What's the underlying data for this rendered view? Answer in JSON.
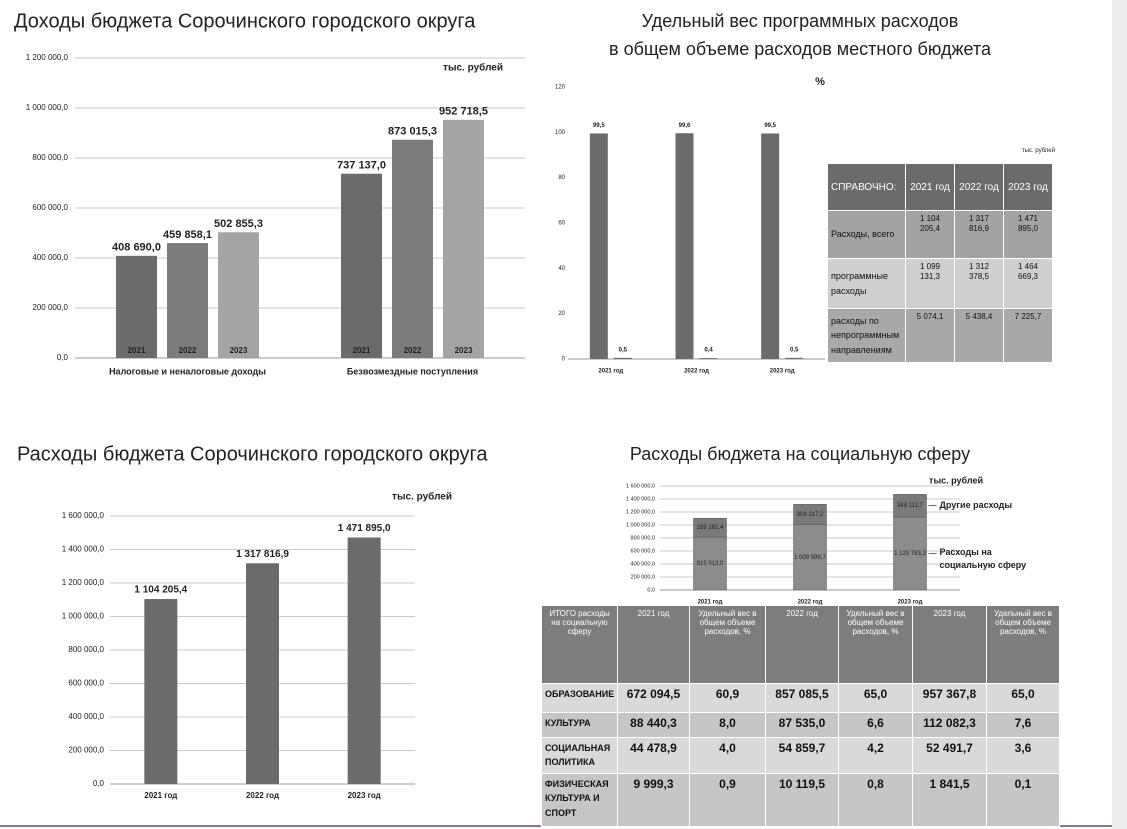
{
  "chart_data": [
    {
      "type": "bar",
      "title": "Доходы бюджета Сорочинского городского округа",
      "unit": "тыс. рублей",
      "categories": [
        "Налоговые и неналоговые доходы",
        "Безвозмездные поступления"
      ],
      "series": [
        {
          "name": "2021",
          "color": "#6b6b6b",
          "values": [
            408690.0,
            737137.0
          ],
          "value_labels": [
            "408 690,0",
            "737 137,0"
          ]
        },
        {
          "name": "2022",
          "color": "#7c7c7c",
          "values": [
            459858.1,
            873015.3
          ],
          "value_labels": [
            "459 858,1",
            "873 015,3"
          ]
        },
        {
          "name": "2023",
          "color": "#a4a4a4",
          "values": [
            502855.3,
            952718.5
          ],
          "value_labels": [
            "502 855,3",
            "952 718,5"
          ]
        }
      ],
      "ylim": [
        0,
        1200000
      ],
      "yticks": [
        {
          "value": 0,
          "label": "0,0"
        },
        {
          "value": 200000,
          "label": "200 000,0"
        },
        {
          "value": 400000,
          "label": "400 000,0"
        },
        {
          "value": 600000,
          "label": "600 000,0"
        },
        {
          "value": 800000,
          "label": "800 000,0"
        },
        {
          "value": 1000000,
          "label": "1 000 000,0"
        },
        {
          "value": 1200000,
          "label": "1 200 000,0"
        }
      ],
      "grid": true
    },
    {
      "type": "bar",
      "title": "Удельный вес программных расходов",
      "subtitle": "в общем объеме расходов местного бюджета",
      "unit": "%",
      "categories": [
        "2021 год",
        "2022 год",
        "2023 год"
      ],
      "series": [
        {
          "color": "#6b6b6b",
          "values": [
            99.5,
            99.6,
            99.5
          ],
          "value_labels": [
            "99,5",
            "99,6",
            "99,5"
          ]
        },
        {
          "color": "#6b6b6b",
          "values": [
            0.5,
            0.4,
            0.5
          ],
          "value_labels": [
            "0,5",
            "0,4",
            "0,5"
          ]
        }
      ],
      "ylim": [
        0,
        120
      ],
      "yticks": [
        0,
        20,
        40,
        60,
        80,
        100,
        120
      ],
      "grid": false
    },
    {
      "type": "bar",
      "title": "Расходы бюджета Сорочинского городского округа",
      "unit": "тыс. рублей",
      "categories": [
        "2021 год",
        "2022 год",
        "2023 год"
      ],
      "values": [
        1104205.4,
        1317816.9,
        1471895.0
      ],
      "value_labels": [
        "1 104 205,4",
        "1 317 816,9",
        "1 471 895,0"
      ],
      "color": "#6b6b6b",
      "ylim": [
        0,
        1600000
      ],
      "yticks": [
        {
          "value": 0,
          "label": "0,0"
        },
        {
          "value": 200000,
          "label": "200 000,0"
        },
        {
          "value": 400000,
          "label": "400 000,0"
        },
        {
          "value": 600000,
          "label": "600 000,0"
        },
        {
          "value": 800000,
          "label": "800 000,0"
        },
        {
          "value": 1000000,
          "label": "1 000 000,0"
        },
        {
          "value": 1200000,
          "label": "1 200 000,0"
        },
        {
          "value": 1400000,
          "label": "1 400 000,0"
        },
        {
          "value": 1600000,
          "label": "1 600 000,0"
        }
      ],
      "grid": true
    },
    {
      "type": "bar",
      "stacked": true,
      "title": "Расходы бюджета на социальную сферу",
      "unit": "тыс. рублей",
      "categories": [
        "2021 год",
        "2022 год",
        "2023 год"
      ],
      "series": [
        {
          "name": "Расходы на социальную сферу",
          "color": "#8c8c8c",
          "values": [
            815013.0,
            1009599.7,
            1123783.3
          ],
          "value_labels": [
            "815 013,0",
            "1 009 599,7",
            "1 123 783,3"
          ]
        },
        {
          "name": "Другие расходы",
          "color": "#7a7a7a",
          "values": [
            289192.4,
            308217.2,
            348111.7
          ],
          "value_labels": [
            "289 192,4",
            "308 217,2",
            "348 111,7"
          ]
        }
      ],
      "ylim": [
        0,
        1600000
      ],
      "yticks": [
        {
          "value": 0,
          "label": "0,0"
        },
        {
          "value": 200000,
          "label": "200 000,0"
        },
        {
          "value": 400000,
          "label": "400 000,0"
        },
        {
          "value": 600000,
          "label": "600 000,0"
        },
        {
          "value": 800000,
          "label": "800 000,0"
        },
        {
          "value": 1000000,
          "label": "1 000 000,0"
        },
        {
          "value": 1200000,
          "label": "1 200 000,0"
        },
        {
          "value": 1400000,
          "label": "1 400 000,0"
        },
        {
          "value": 1600000,
          "label": "1 600 000,0"
        }
      ],
      "grid": true
    }
  ],
  "tables": [
    {
      "unit": "тыс. рублей",
      "header": [
        "СПРАВОЧНО:",
        "2021 год",
        "2022 год",
        "2023 год"
      ],
      "rows": [
        [
          "Расходы, всего",
          "1 104 205,4",
          "1 317 816,9",
          "1 471 895,0"
        ],
        [
          "программные расходы",
          "1 099 131,3",
          "1 312 378,5",
          "1 464 669,3"
        ],
        [
          "расходы по непрограммным направлениям",
          "5 074,1",
          "5 438,4",
          "7 225,7"
        ]
      ]
    },
    {
      "header": [
        "ИТОГО расходы на социальную сферу",
        "2021 год",
        "Удельный вес в общем объеме расходов, %",
        "2022 год",
        "Удельный вес в общем объеме расходов, %",
        "2023 год",
        "Удельный вес в общем объеме расходов, %"
      ],
      "rows": [
        [
          "ОБРАЗОВАНИЕ",
          "672 094,5",
          "60,9",
          "857 085,5",
          "65,0",
          "957 367,8",
          "65,0"
        ],
        [
          "КУЛЬТУРА",
          "88 440,3",
          "8,0",
          "87 535,0",
          "6,6",
          "112 082,3",
          "7,6"
        ],
        [
          "СОЦИАЛЬНАЯ ПОЛИТИКА",
          "44 478,9",
          "4,0",
          "54 859,7",
          "4,2",
          "52 491,7",
          "3,6"
        ],
        [
          "ФИЗИЧЕСКАЯ КУЛЬТУРА И СПОРТ",
          "9 999,3",
          "0,9",
          "10 119,5",
          "0,8",
          "1 841,5",
          "0,1"
        ]
      ]
    }
  ]
}
